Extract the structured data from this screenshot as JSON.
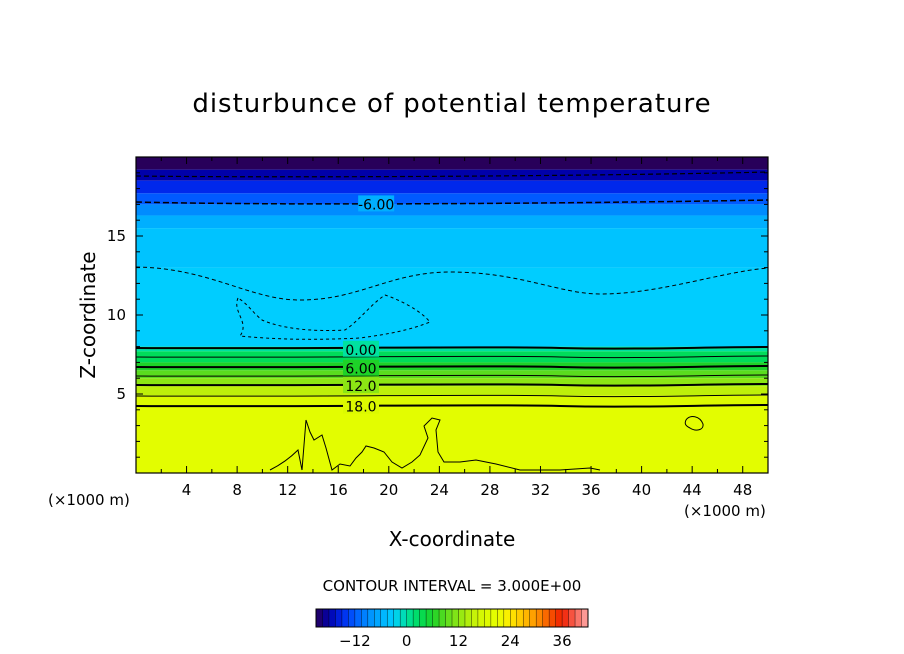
{
  "chart_data": {
    "type": "contour",
    "title": "disturbunce of potential temperature",
    "xlabel": "X-coordinate",
    "ylabel": "Z-coordinate",
    "x_unit_left": "(×1000 m)",
    "x_unit_right": "(×1000 m)",
    "xlim": [
      0,
      50
    ],
    "ylim": [
      0,
      20
    ],
    "x_ticks": [
      4,
      8,
      12,
      16,
      20,
      24,
      28,
      32,
      36,
      40,
      44,
      48
    ],
    "y_ticks": [
      5,
      10,
      15
    ],
    "contour_interval_text": "CONTOUR INTERVAL = 3.000E+00",
    "colorbar": {
      "min": -21,
      "max": 42,
      "ticks": [
        -12,
        0,
        12,
        24,
        36
      ]
    },
    "contour_labels": [
      {
        "text": "-6.00",
        "x": 19,
        "z": 17.0
      },
      {
        "text": "0.00",
        "x": 17.8,
        "z": 7.8
      },
      {
        "text": "6.00",
        "x": 17.8,
        "z": 6.6
      },
      {
        "text": "12.0",
        "x": 17.8,
        "z": 5.5
      },
      {
        "text": "18.0",
        "x": 17.8,
        "z": 4.2
      }
    ],
    "layers_value_by_height": [
      {
        "z_top": 20.0,
        "value": -21
      },
      {
        "z_top": 19.2,
        "value": -18
      },
      {
        "z_top": 18.5,
        "value": -15
      },
      {
        "z_top": 17.7,
        "value": -12
      },
      {
        "z_top": 17.0,
        "value": -9
      },
      {
        "z_top": 16.3,
        "value": -6
      },
      {
        "z_top": 15.5,
        "value": -4
      },
      {
        "z_top": 13.0,
        "value": -3
      },
      {
        "z_top": 8.0,
        "value": 0
      },
      {
        "z_top": 7.7,
        "value": 3
      },
      {
        "z_top": 7.0,
        "value": 6
      },
      {
        "z_top": 6.5,
        "value": 9
      },
      {
        "z_top": 6.0,
        "value": 12
      },
      {
        "z_top": 5.5,
        "value": 15
      },
      {
        "z_top": 4.9,
        "value": 18
      },
      {
        "z_top": 4.3,
        "value": 21
      }
    ]
  }
}
